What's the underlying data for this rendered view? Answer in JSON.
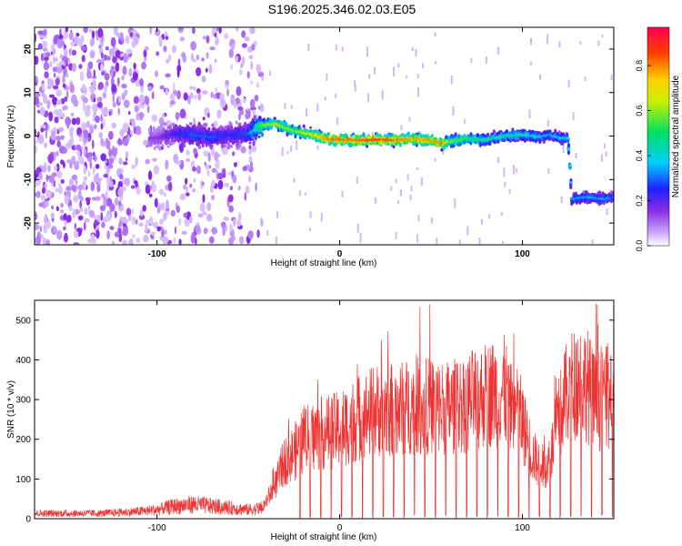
{
  "title": "S196.2025.346.02.03.E05",
  "chart_data": [
    {
      "type": "heatmap",
      "xlabel": "Height of straight line (km)",
      "ylabel": "Frequency (Hz)",
      "xlim": [
        -167,
        150
      ],
      "ylim": [
        -25,
        25
      ],
      "x_ticks": [
        -100,
        0,
        100
      ],
      "y_ticks": [
        -20,
        -10,
        0,
        10,
        20
      ],
      "colorbar": {
        "label": "Normalized spectral amplitude",
        "range": [
          0,
          0.97
        ],
        "ticks": [
          0.0,
          0.2,
          0.4,
          0.6,
          0.8
        ],
        "colormap": "white-purple-blue-cyan-green-yellow-red"
      },
      "ridge": {
        "x": [
          -100,
          -90,
          -80,
          -70,
          -60,
          -50,
          -42,
          -35,
          -25,
          -15,
          -5,
          0,
          10,
          20,
          30,
          40,
          50,
          56,
          60,
          70,
          80,
          90,
          100,
          110,
          115,
          121,
          125,
          127,
          135,
          145,
          150
        ],
        "freq": [
          -0.5,
          0.5,
          0.2,
          -0.3,
          0.2,
          0.5,
          2.5,
          2.8,
          1.2,
          0.3,
          -0.8,
          -0.8,
          -1.0,
          -0.8,
          -0.9,
          -0.7,
          -1.0,
          -1.7,
          -1.3,
          -0.6,
          -0.9,
          0.0,
          0.3,
          -0.2,
          0.3,
          -0.5,
          -0.5,
          -14.5,
          -14.0,
          -14.5,
          -14.0
        ],
        "amplitude": [
          0.15,
          0.25,
          0.3,
          0.3,
          0.25,
          0.3,
          0.6,
          0.65,
          0.6,
          0.7,
          0.85,
          0.85,
          0.85,
          0.9,
          0.85,
          0.8,
          0.8,
          0.85,
          0.6,
          0.55,
          0.45,
          0.45,
          0.45,
          0.4,
          0.35,
          0.4,
          0.4,
          0.35,
          0.35,
          0.35,
          0.3
        ]
      },
      "noise_region": {
        "xlim": [
          -167,
          -42
        ],
        "note": ""
      }
    },
    {
      "type": "line",
      "xlabel": "Height of straight line (km)",
      "ylabel": "SNR (10 * v/v)",
      "xlim": [
        -167,
        150
      ],
      "ylim": [
        0,
        550
      ],
      "x_ticks": [
        -100,
        0,
        100
      ],
      "y_ticks": [
        0,
        100,
        200,
        300,
        400,
        500
      ],
      "series": [
        {
          "color": "#ee3333",
          "envelope": {
            "x": [
              -167,
              -130,
              -110,
              -100,
              -90,
              -80,
              -70,
              -60,
              -50,
              -42,
              -35,
              -30,
              -25,
              -20,
              -10,
              0,
              10,
              20,
              30,
              40,
              50,
              60,
              70,
              80,
              90,
              100,
              105,
              110,
              115,
              120,
              125,
              130,
              135,
              140,
              145,
              150
            ],
            "y": [
              15,
              15,
              20,
              25,
              35,
              40,
              35,
              30,
              25,
              30,
              90,
              150,
              170,
              200,
              220,
              230,
              260,
              280,
              280,
              290,
              290,
              285,
              300,
              320,
              330,
              250,
              170,
              130,
              150,
              260,
              330,
              360,
              350,
              300,
              320,
              280
            ]
          },
          "dropout_spacing_km": 5.7,
          "dropout_start_km": -22
        }
      ]
    }
  ]
}
